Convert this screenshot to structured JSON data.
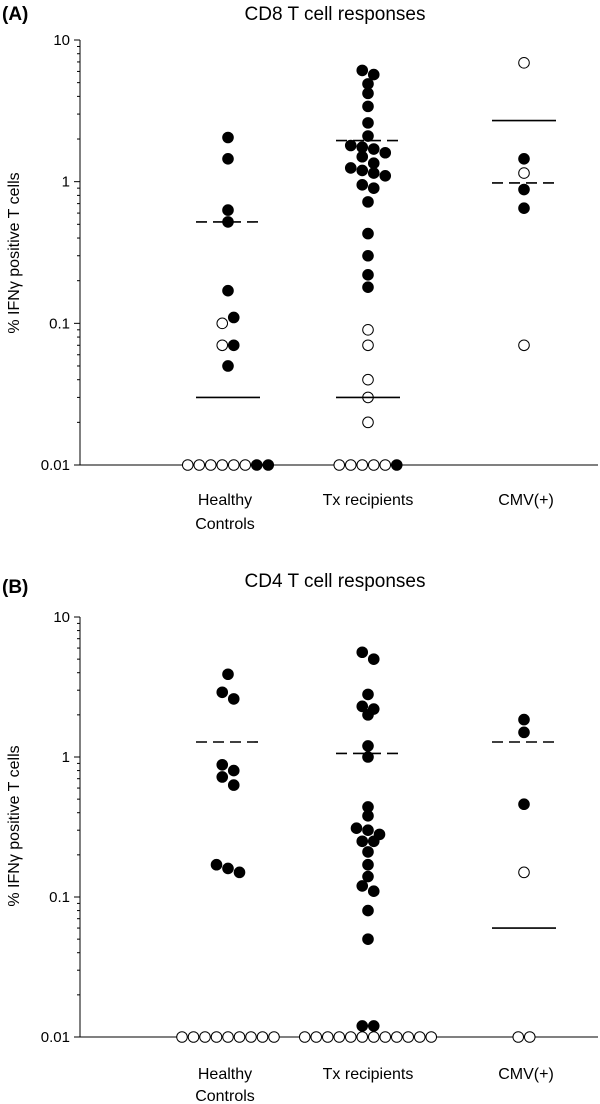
{
  "chart_data": [
    {
      "type": "scatter",
      "panel_label": "(A)",
      "title": "CD8 T cell responses",
      "ylabel": "% IFNγ positive T cells",
      "yscale": "log",
      "ylim": [
        0.01,
        10
      ],
      "yticks": [
        "0.01",
        "0.1",
        "1",
        "10"
      ],
      "categories": [
        {
          "line1": "Healthy",
          "line2": "Controls"
        },
        {
          "line1": "Tx recipients",
          "line2": ""
        },
        {
          "line1": "CMV(+)",
          "line2": ""
        }
      ],
      "groups": [
        {
          "filled": [
            2.05,
            1.45,
            0.63,
            0.52,
            0.17,
            0.11,
            0.07,
            0.05,
            0.01,
            0.01
          ],
          "open": [
            0.1,
            0.07,
            0.01,
            0.01,
            0.01,
            0.01,
            0.01,
            0.01
          ],
          "median": 0.03,
          "mean": 0.52
        },
        {
          "filled": [
            6.1,
            5.7,
            4.9,
            4.2,
            3.4,
            2.6,
            2.1,
            1.8,
            1.75,
            1.7,
            1.6,
            1.5,
            1.35,
            1.25,
            1.2,
            1.15,
            1.1,
            0.95,
            0.9,
            0.72,
            0.43,
            0.3,
            0.22,
            0.18,
            0.01
          ],
          "open": [
            0.09,
            0.07,
            0.04,
            0.03,
            0.02,
            0.01,
            0.01,
            0.01,
            0.01,
            0.01
          ],
          "median": 0.03,
          "mean": 1.95
        },
        {
          "filled": [
            1.45,
            0.88,
            0.65
          ],
          "open": [
            6.9,
            1.15,
            0.07
          ],
          "median": 2.7,
          "mean": 0.98
        }
      ]
    },
    {
      "type": "scatter",
      "panel_label": "(B)",
      "title": "CD4 T cell responses",
      "ylabel": "% IFNγ positive T cells",
      "yscale": "log",
      "ylim": [
        0.01,
        10
      ],
      "yticks": [
        "0.01",
        "0.1",
        "1",
        "10"
      ],
      "categories": [
        {
          "line1": "Healthy",
          "line2": "Controls"
        },
        {
          "line1": "Tx recipients",
          "line2": ""
        },
        {
          "line1": "CMV(+)",
          "line2": ""
        }
      ],
      "groups": [
        {
          "filled": [
            3.9,
            2.9,
            2.6,
            0.88,
            0.8,
            0.72,
            0.63,
            0.17,
            0.16,
            0.15
          ],
          "open": [
            0.01,
            0.01,
            0.01,
            0.01,
            0.01,
            0.01,
            0.01,
            0.01,
            0.01
          ],
          "median": null,
          "mean": 1.28
        },
        {
          "filled": [
            5.6,
            5.0,
            2.8,
            2.3,
            2.2,
            2.0,
            1.2,
            1.0,
            0.44,
            0.38,
            0.31,
            0.3,
            0.28,
            0.25,
            0.25,
            0.21,
            0.17,
            0.14,
            0.12,
            0.11,
            0.08,
            0.05,
            0.012,
            0.012
          ],
          "open": [
            0.01,
            0.01,
            0.01,
            0.01,
            0.01,
            0.01,
            0.01,
            0.01,
            0.01,
            0.01,
            0.01,
            0.01
          ],
          "median": null,
          "mean": 1.06
        },
        {
          "filled": [
            1.85,
            1.5,
            0.46
          ],
          "open": [
            0.15,
            0.01,
            0.01
          ],
          "median": 0.06,
          "mean": 1.28
        }
      ]
    }
  ]
}
